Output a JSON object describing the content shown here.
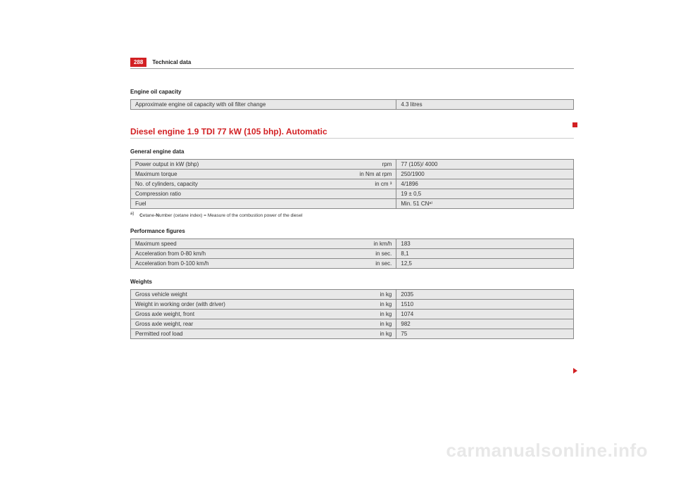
{
  "header": {
    "page_number": "288",
    "title": "Technical data"
  },
  "oil_capacity": {
    "section_label": "Engine oil capacity",
    "rows": [
      {
        "label": "Approximate engine oil capacity with oil filter change",
        "value": "4.3 litres"
      }
    ]
  },
  "engine_heading": "Diesel engine 1.9 TDI 77 kW (105 bhp). Automatic",
  "general_engine": {
    "section_label": "General engine data",
    "rows": [
      {
        "label": "Power output in kW (bhp)",
        "unit": "rpm",
        "value": "77 (105)/ 4000"
      },
      {
        "label": "Maximum torque",
        "unit": "in Nm at rpm",
        "value": "250/1900"
      },
      {
        "label": "No. of cylinders, capacity",
        "unit": "in cm ³",
        "value": "4/1896"
      },
      {
        "label": "Compression ratio",
        "unit": "",
        "value": "19 ± 0,5"
      },
      {
        "label": "Fuel",
        "unit": "",
        "value": "Min. 51 CNᵃ⁾"
      }
    ],
    "footnote_marker": "a)",
    "footnote": "Cetane-Number (cetane index) = Measure of the combustion power of the diesel"
  },
  "performance": {
    "section_label": "Performance figures",
    "rows": [
      {
        "label": "Maximum speed",
        "unit": "in km/h",
        "value": "183"
      },
      {
        "label": "Acceleration from 0-80 km/h",
        "unit": "in sec.",
        "value": "8,1"
      },
      {
        "label": "Acceleration from 0-100 km/h",
        "unit": "in sec.",
        "value": "12,5"
      }
    ]
  },
  "weights": {
    "section_label": "Weights",
    "rows": [
      {
        "label": "Gross vehicle weight",
        "unit": "in kg",
        "value": "2035"
      },
      {
        "label": "Weight in working order (with driver)",
        "unit": "in kg",
        "value": "1510"
      },
      {
        "label": "Gross axle weight, front",
        "unit": "in kg",
        "value": "1074"
      },
      {
        "label": "Gross axle weight, rear",
        "unit": "in kg",
        "value": "982"
      },
      {
        "label": "Permitted roof load",
        "unit": "in kg",
        "value": "75"
      }
    ]
  },
  "watermark": "carmanualsonline.info",
  "colors": {
    "accent": "#d22023",
    "row_bg": "#e8e8e8",
    "border": "#888888",
    "text": "#333333",
    "watermark": "#e8e8e8"
  }
}
